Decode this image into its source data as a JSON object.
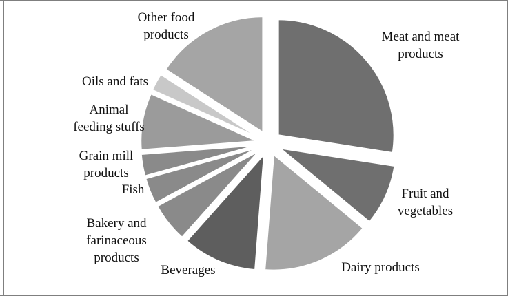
{
  "chart_data": {
    "type": "pie",
    "exploded": true,
    "title": "",
    "categories": [
      "Meat and meat products",
      "Fruit and vegetables",
      "Dairy products",
      "Beverages",
      "Bakery and farinaceous products",
      "Fish",
      "Grain mill products",
      "Animal feeding stuffs",
      "Oils and fats",
      "Other food products"
    ],
    "label_lines": [
      [
        "Meat and meat",
        "products"
      ],
      [
        "Fruit and",
        "vegetables"
      ],
      [
        "Dairy products"
      ],
      [
        "Beverages"
      ],
      [
        "Bakery and",
        "farinaceous",
        "products"
      ],
      [
        "Fish"
      ],
      [
        "Grain mill",
        "products"
      ],
      [
        "Animal",
        "feeding stuffs"
      ],
      [
        "Oils and fats"
      ],
      [
        "Other food",
        "products"
      ]
    ],
    "values": [
      22.5,
      7.0,
      12.5,
      8.5,
      4.5,
      3.0,
      2.5,
      6.5,
      2.0,
      13.0
    ],
    "colors": [
      "#6f6f6f",
      "#6f6f6f",
      "#a5a5a5",
      "#5e5e5e",
      "#8a8a8a",
      "#8a8a8a",
      "#8a8a8a",
      "#9b9b9b",
      "#c8c8c8",
      "#a5a5a5"
    ],
    "legend": "none"
  }
}
